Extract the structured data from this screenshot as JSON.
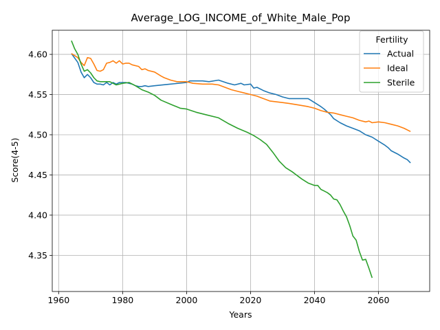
{
  "chart_data": {
    "type": "line",
    "title": "Average_LOG_INCOME_of_White_Male_Pop",
    "xlabel": "Years",
    "ylabel": "Score(4-5)",
    "xlim": [
      1958,
      2076
    ],
    "ylim": [
      4.305,
      4.63
    ],
    "xticks": [
      1960,
      1980,
      2000,
      2020,
      2040,
      2060
    ],
    "yticks": [
      4.35,
      4.4,
      4.45,
      4.5,
      4.55,
      4.6
    ],
    "grid": true,
    "legend": {
      "title": "Fertility",
      "placement": "top-right"
    },
    "series": [
      {
        "name": "Actual",
        "color": "#1f77b4",
        "x": [
          1964,
          1966,
          1967,
          1968,
          1969,
          1970,
          1971,
          1972,
          1973,
          1974,
          1975,
          1976,
          1977,
          1978,
          1979,
          1980,
          1981,
          1982,
          1983,
          1984,
          1985,
          1986,
          1987,
          1988,
          1990,
          1995,
          2000,
          2001,
          2005,
          2007,
          2010,
          2013,
          2015,
          2017,
          2018,
          2020,
          2021,
          2022,
          2024,
          2026,
          2028,
          2030,
          2032,
          2035,
          2038,
          2040,
          2042,
          2043,
          2045,
          2046,
          2048,
          2050,
          2052,
          2054,
          2056,
          2058,
          2060,
          2062,
          2063,
          2064,
          2066,
          2068,
          2069,
          2070
        ],
        "values": [
          4.601,
          4.59,
          4.578,
          4.571,
          4.575,
          4.571,
          4.565,
          4.563,
          4.563,
          4.562,
          4.565,
          4.562,
          4.565,
          4.563,
          4.565,
          4.565,
          4.565,
          4.564,
          4.563,
          4.561,
          4.56,
          4.56,
          4.561,
          4.56,
          4.561,
          4.563,
          4.565,
          4.567,
          4.567,
          4.566,
          4.568,
          4.564,
          4.562,
          4.564,
          4.562,
          4.563,
          4.558,
          4.559,
          4.555,
          4.552,
          4.55,
          4.547,
          4.545,
          4.545,
          4.545,
          4.54,
          4.535,
          4.532,
          4.525,
          4.52,
          4.515,
          4.511,
          4.508,
          4.505,
          4.5,
          4.497,
          4.492,
          4.487,
          4.484,
          4.48,
          4.476,
          4.471,
          4.469,
          4.465
        ]
      },
      {
        "name": "Ideal",
        "color": "#ff7f0e",
        "x": [
          1964,
          1966,
          1967,
          1968,
          1969,
          1970,
          1971,
          1972,
          1973,
          1974,
          1975,
          1976,
          1977,
          1978,
          1979,
          1980,
          1981,
          1982,
          1983,
          1985,
          1986,
          1987,
          1988,
          1990,
          1992,
          1993,
          1995,
          1997,
          2000,
          2002,
          2005,
          2008,
          2010,
          2012,
          2014,
          2016,
          2018,
          2020,
          2022,
          2024,
          2026,
          2028,
          2030,
          2032,
          2035,
          2038,
          2040,
          2042,
          2044,
          2046,
          2048,
          2050,
          2052,
          2054,
          2056,
          2057,
          2058,
          2060,
          2062,
          2064,
          2066,
          2068,
          2070
        ],
        "values": [
          4.601,
          4.596,
          4.59,
          4.586,
          4.596,
          4.595,
          4.588,
          4.58,
          4.579,
          4.581,
          4.589,
          4.59,
          4.592,
          4.589,
          4.592,
          4.588,
          4.589,
          4.589,
          4.587,
          4.585,
          4.581,
          4.582,
          4.58,
          4.578,
          4.573,
          4.571,
          4.568,
          4.566,
          4.566,
          4.564,
          4.563,
          4.563,
          4.562,
          4.559,
          4.556,
          4.554,
          4.552,
          4.55,
          4.548,
          4.545,
          4.542,
          4.541,
          4.54,
          4.539,
          4.537,
          4.535,
          4.533,
          4.53,
          4.528,
          4.527,
          4.525,
          4.523,
          4.521,
          4.518,
          4.516,
          4.517,
          4.515,
          4.516,
          4.515,
          4.513,
          4.511,
          4.508,
          4.504
        ]
      },
      {
        "name": "Sterile",
        "color": "#2ca02c",
        "x": [
          1964,
          1965,
          1966,
          1967,
          1968,
          1969,
          1970,
          1971,
          1972,
          1973,
          1974,
          1975,
          1976,
          1977,
          1978,
          1980,
          1982,
          1984,
          1986,
          1988,
          1990,
          1992,
          1995,
          1998,
          2000,
          2003,
          2006,
          2010,
          2013,
          2016,
          2019,
          2021,
          2023,
          2025,
          2027,
          2029,
          2031,
          2033,
          2035,
          2036,
          2038,
          2040,
          2041,
          2042,
          2043,
          2044,
          2045,
          2046,
          2047,
          2048,
          2049,
          2050,
          2051,
          2052,
          2053,
          2054,
          2055,
          2056,
          2057,
          2058
        ],
        "values": [
          4.617,
          4.607,
          4.6,
          4.588,
          4.579,
          4.581,
          4.577,
          4.571,
          4.567,
          4.566,
          4.566,
          4.566,
          4.566,
          4.564,
          4.562,
          4.564,
          4.565,
          4.561,
          4.556,
          4.553,
          4.549,
          4.543,
          4.538,
          4.533,
          4.532,
          4.528,
          4.525,
          4.521,
          4.514,
          4.508,
          4.503,
          4.499,
          4.494,
          4.488,
          4.478,
          4.467,
          4.459,
          4.454,
          4.448,
          4.445,
          4.44,
          4.437,
          4.437,
          4.432,
          4.43,
          4.428,
          4.425,
          4.42,
          4.419,
          4.413,
          4.405,
          4.398,
          4.387,
          4.374,
          4.369,
          4.355,
          4.344,
          4.345,
          4.334,
          4.322
        ]
      }
    ]
  }
}
